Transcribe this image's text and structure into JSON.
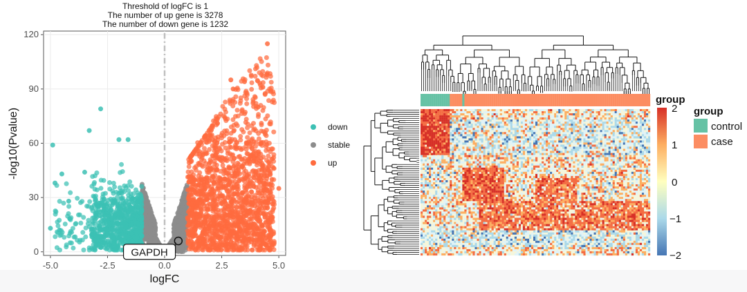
{
  "chart_data": [
    {
      "type": "scatter",
      "title_lines": [
        "Threshold of logFC is 1",
        "The number of up gene is 3278",
        "The number of down gene is 1232"
      ],
      "xlabel": "logFC",
      "ylabel": "-log10(Pvalue)",
      "xlim": [
        -5.3,
        5.3
      ],
      "ylim": [
        -2,
        122
      ],
      "xticks": [
        -5.0,
        -2.5,
        0.0,
        2.5,
        5.0
      ],
      "xtick_labels": [
        "-5.0",
        "-2.5",
        "0.0",
        "2.5",
        "5.0"
      ],
      "yticks": [
        0,
        30,
        60,
        90,
        120
      ],
      "ytick_labels": [
        "0",
        "30",
        "60",
        "90",
        "120"
      ],
      "threshold_logFC": 1,
      "legend": {
        "position": "right",
        "entries": [
          {
            "label": "down",
            "color": "#3cc0b4"
          },
          {
            "label": "stable",
            "color": "#8c8c8c"
          },
          {
            "label": "up",
            "color": "#ff6b3e"
          }
        ]
      },
      "series": [
        {
          "name": "down",
          "count": 1232,
          "color": "#3cc0b4",
          "highlight_points": [
            [
              -4.9,
              59
            ],
            [
              -2.8,
              79
            ],
            [
              -3.3,
              67
            ],
            [
              -2.0,
              62
            ],
            [
              -5.0,
              13
            ],
            [
              -4.6,
              12
            ],
            [
              -4.2,
              28
            ],
            [
              -3.5,
              44
            ],
            [
              -1.6,
              62
            ],
            [
              -4.5,
              43
            ],
            [
              -4.8,
              38
            ]
          ]
        },
        {
          "name": "stable",
          "color": "#8c8c8c"
        },
        {
          "name": "up",
          "count": 3278,
          "color": "#ff6b3e",
          "highlight_points": [
            [
              4.5,
              115
            ],
            [
              2.9,
              95
            ],
            [
              3.5,
              94
            ],
            [
              3.0,
              90
            ],
            [
              4.3,
              91
            ],
            [
              4.4,
              87
            ],
            [
              4.1,
              80
            ],
            [
              2.1,
              62
            ],
            [
              2.3,
              55
            ],
            [
              3.9,
              50
            ],
            [
              4.7,
              40
            ],
            [
              5.0,
              35
            ]
          ]
        }
      ],
      "annotation": {
        "label": "GAPDH",
        "x": 0.6,
        "y": 6
      }
    },
    {
      "type": "heatmap",
      "legend_title": "group",
      "color_scale": {
        "ticks": [
          2,
          1,
          0,
          -1,
          -2
        ],
        "tick_labels": [
          "2",
          "1",
          "0",
          "−1",
          "−2"
        ],
        "colors": [
          "#d73027",
          "#fdae61",
          "#ffffbf",
          "#abd9e9",
          "#4575b4"
        ]
      },
      "group_legend": {
        "title": "group",
        "entries": [
          {
            "label": "control",
            "color": "#66c2a5"
          },
          {
            "label": "case",
            "color": "#fc8d62"
          }
        ]
      }
    }
  ]
}
